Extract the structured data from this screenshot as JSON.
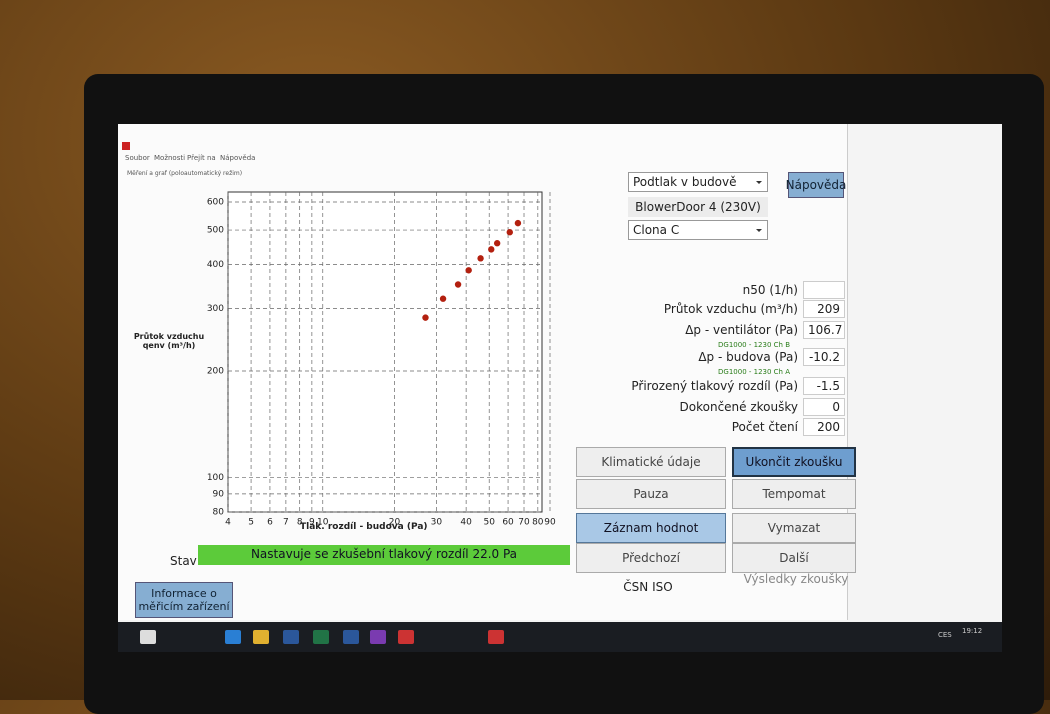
{
  "menu": [
    "Soubor",
    "Možnosti",
    "Přejít na",
    "Nápověda"
  ],
  "subtitle": "Měření a graf (poloautomatický režim)",
  "chart": {
    "type": "scatter",
    "y_label": "Průtok vzduchu qenv (m³/h)",
    "x_label": "Tlak. rozdíl - budova (Pa)",
    "log_scale": true,
    "grid": true,
    "color": "#b3200f",
    "xlim": [
      4,
      90
    ],
    "ylim": [
      80,
      600
    ],
    "xticks": [
      4,
      5,
      6,
      7,
      8,
      9,
      10,
      20,
      30,
      40,
      50,
      60,
      70,
      80,
      90
    ],
    "yticks": [
      80,
      90,
      100,
      200,
      300,
      400,
      500,
      600
    ],
    "x": [
      27,
      32,
      37,
      41,
      46,
      51,
      54,
      61,
      66
    ],
    "values": [
      283,
      320,
      351,
      385,
      416,
      441,
      459,
      493,
      523
    ]
  },
  "controls": {
    "mode": "Podtlak v budově",
    "help": "Nápověda",
    "device": "BlowerDoor 4 (230V)",
    "ring": "Clona C"
  },
  "fields": [
    {
      "label": "n50 (1/h)"
    },
    {
      "label": "Průtok vzduchu (m³/h)",
      "value": 209
    },
    {
      "label": "Δp - ventilátor (Pa)",
      "value": 106.7,
      "note": "DG1000 - 1230 Ch B"
    },
    {
      "label": "Δp - budova (Pa)",
      "value": -10.2,
      "note": "DG1000 - 1230 Ch A"
    },
    {
      "label": "Přirozený tlakový rozdíl (Pa)",
      "value": -1.5
    },
    {
      "label": "Dokončené zkoušky",
      "value": 0
    },
    {
      "label": "Počet čtení",
      "value": 200
    }
  ],
  "buttons": [
    "Klimatické údaje",
    "Ukončit zkoušku",
    "Pauza",
    "Tempomat",
    "Záznam hodnot",
    "Vymazat",
    "Předchozí",
    "Další"
  ],
  "standard": "ČSN ISO",
  "results": "Výsledky zkoušky",
  "status": {
    "label": "Stav",
    "text": "Nastavuje se zkušební tlakový rozdíl 22.0 Pa"
  },
  "info_button": "Informace o měřicím zařízení",
  "taskbar": {
    "language": "CES",
    "time": "19:12"
  }
}
